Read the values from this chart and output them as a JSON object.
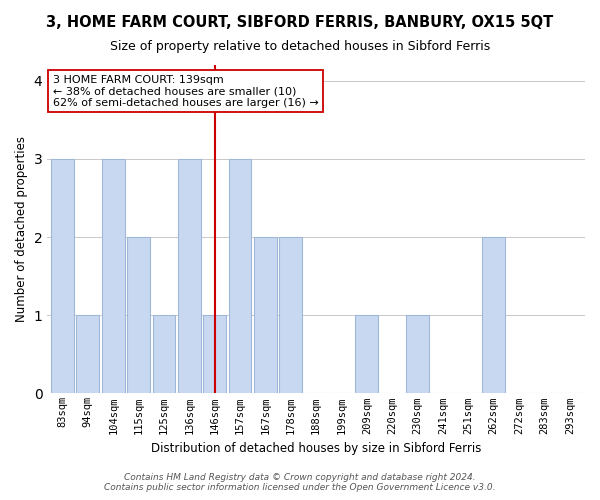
{
  "title": "3, HOME FARM COURT, SIBFORD FERRIS, BANBURY, OX15 5QT",
  "subtitle": "Size of property relative to detached houses in Sibford Ferris",
  "xlabel": "Distribution of detached houses by size in Sibford Ferris",
  "ylabel": "Number of detached properties",
  "bar_labels": [
    "83sqm",
    "94sqm",
    "104sqm",
    "115sqm",
    "125sqm",
    "136sqm",
    "146sqm",
    "157sqm",
    "167sqm",
    "178sqm",
    "188sqm",
    "199sqm",
    "209sqm",
    "220sqm",
    "230sqm",
    "241sqm",
    "251sqm",
    "262sqm",
    "272sqm",
    "283sqm",
    "293sqm"
  ],
  "bar_values": [
    3,
    1,
    3,
    2,
    1,
    3,
    1,
    3,
    2,
    2,
    0,
    0,
    1,
    0,
    1,
    0,
    0,
    2,
    0,
    0,
    0
  ],
  "bar_color": "#c8d8f0",
  "bar_edge_color": "#a0b8d8",
  "vline_x_index": 6,
  "vline_color": "#cc0000",
  "annotation_text": "3 HOME FARM COURT: 139sqm\n← 38% of detached houses are smaller (10)\n62% of semi-detached houses are larger (16) →",
  "annotation_box_color": "#ffffff",
  "annotation_box_edge": "#cc0000",
  "ylim": [
    0,
    4.2
  ],
  "yticks": [
    0,
    1,
    2,
    3,
    4
  ],
  "footer": "Contains HM Land Registry data © Crown copyright and database right 2024.\nContains public sector information licensed under the Open Government Licence v3.0.",
  "background_color": "#ffffff",
  "grid_color": "#c8c8c8"
}
